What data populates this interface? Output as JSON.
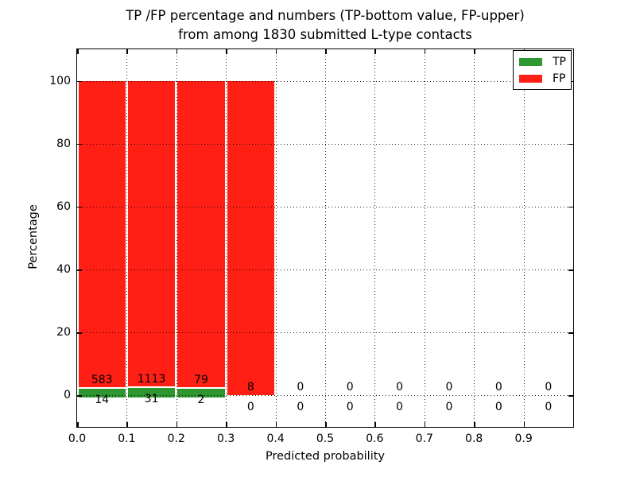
{
  "chart_data": {
    "type": "bar",
    "stacked": true,
    "title": "TP /FP percentage and numbers (TP-bottom value, FP-upper)",
    "subtitle": "from among 1830 submitted L-type contacts",
    "xlabel": "Predicted probability",
    "ylabel": "Percentage",
    "total_contacts": 1830,
    "bin_starts": [
      0.0,
      0.1,
      0.2,
      0.3,
      0.4,
      0.5,
      0.6,
      0.7,
      0.8,
      0.9
    ],
    "bin_width": 0.1,
    "series": [
      {
        "name": "TP",
        "color": "#2e9732",
        "counts": [
          14,
          31,
          2,
          0,
          0,
          0,
          0,
          0,
          0,
          0
        ]
      },
      {
        "name": "FP",
        "color": "#ff1f14",
        "counts": [
          583,
          1113,
          79,
          8,
          0,
          0,
          0,
          0,
          0,
          0
        ]
      }
    ],
    "bar_value_labels_note": "TP-bottom value, FP-upper",
    "x_tick_labels": [
      "0.0",
      "0.1",
      "0.2",
      "0.3",
      "0.4",
      "0.5",
      "0.6",
      "0.7",
      "0.8",
      "0.9"
    ],
    "y_tick_labels": [
      "0",
      "20",
      "40",
      "60",
      "80",
      "100"
    ],
    "y_tick_values": [
      0,
      20,
      40,
      60,
      80,
      100
    ],
    "xlim": [
      0.0,
      1.0
    ],
    "ylim": [
      -10,
      110
    ],
    "grid": "dotted",
    "grid_above_bars": true,
    "legend_position": "upper right"
  },
  "legend": {
    "items": [
      {
        "label": "TP",
        "color": "#2e9732"
      },
      {
        "label": "FP",
        "color": "#ff1f14"
      }
    ]
  }
}
